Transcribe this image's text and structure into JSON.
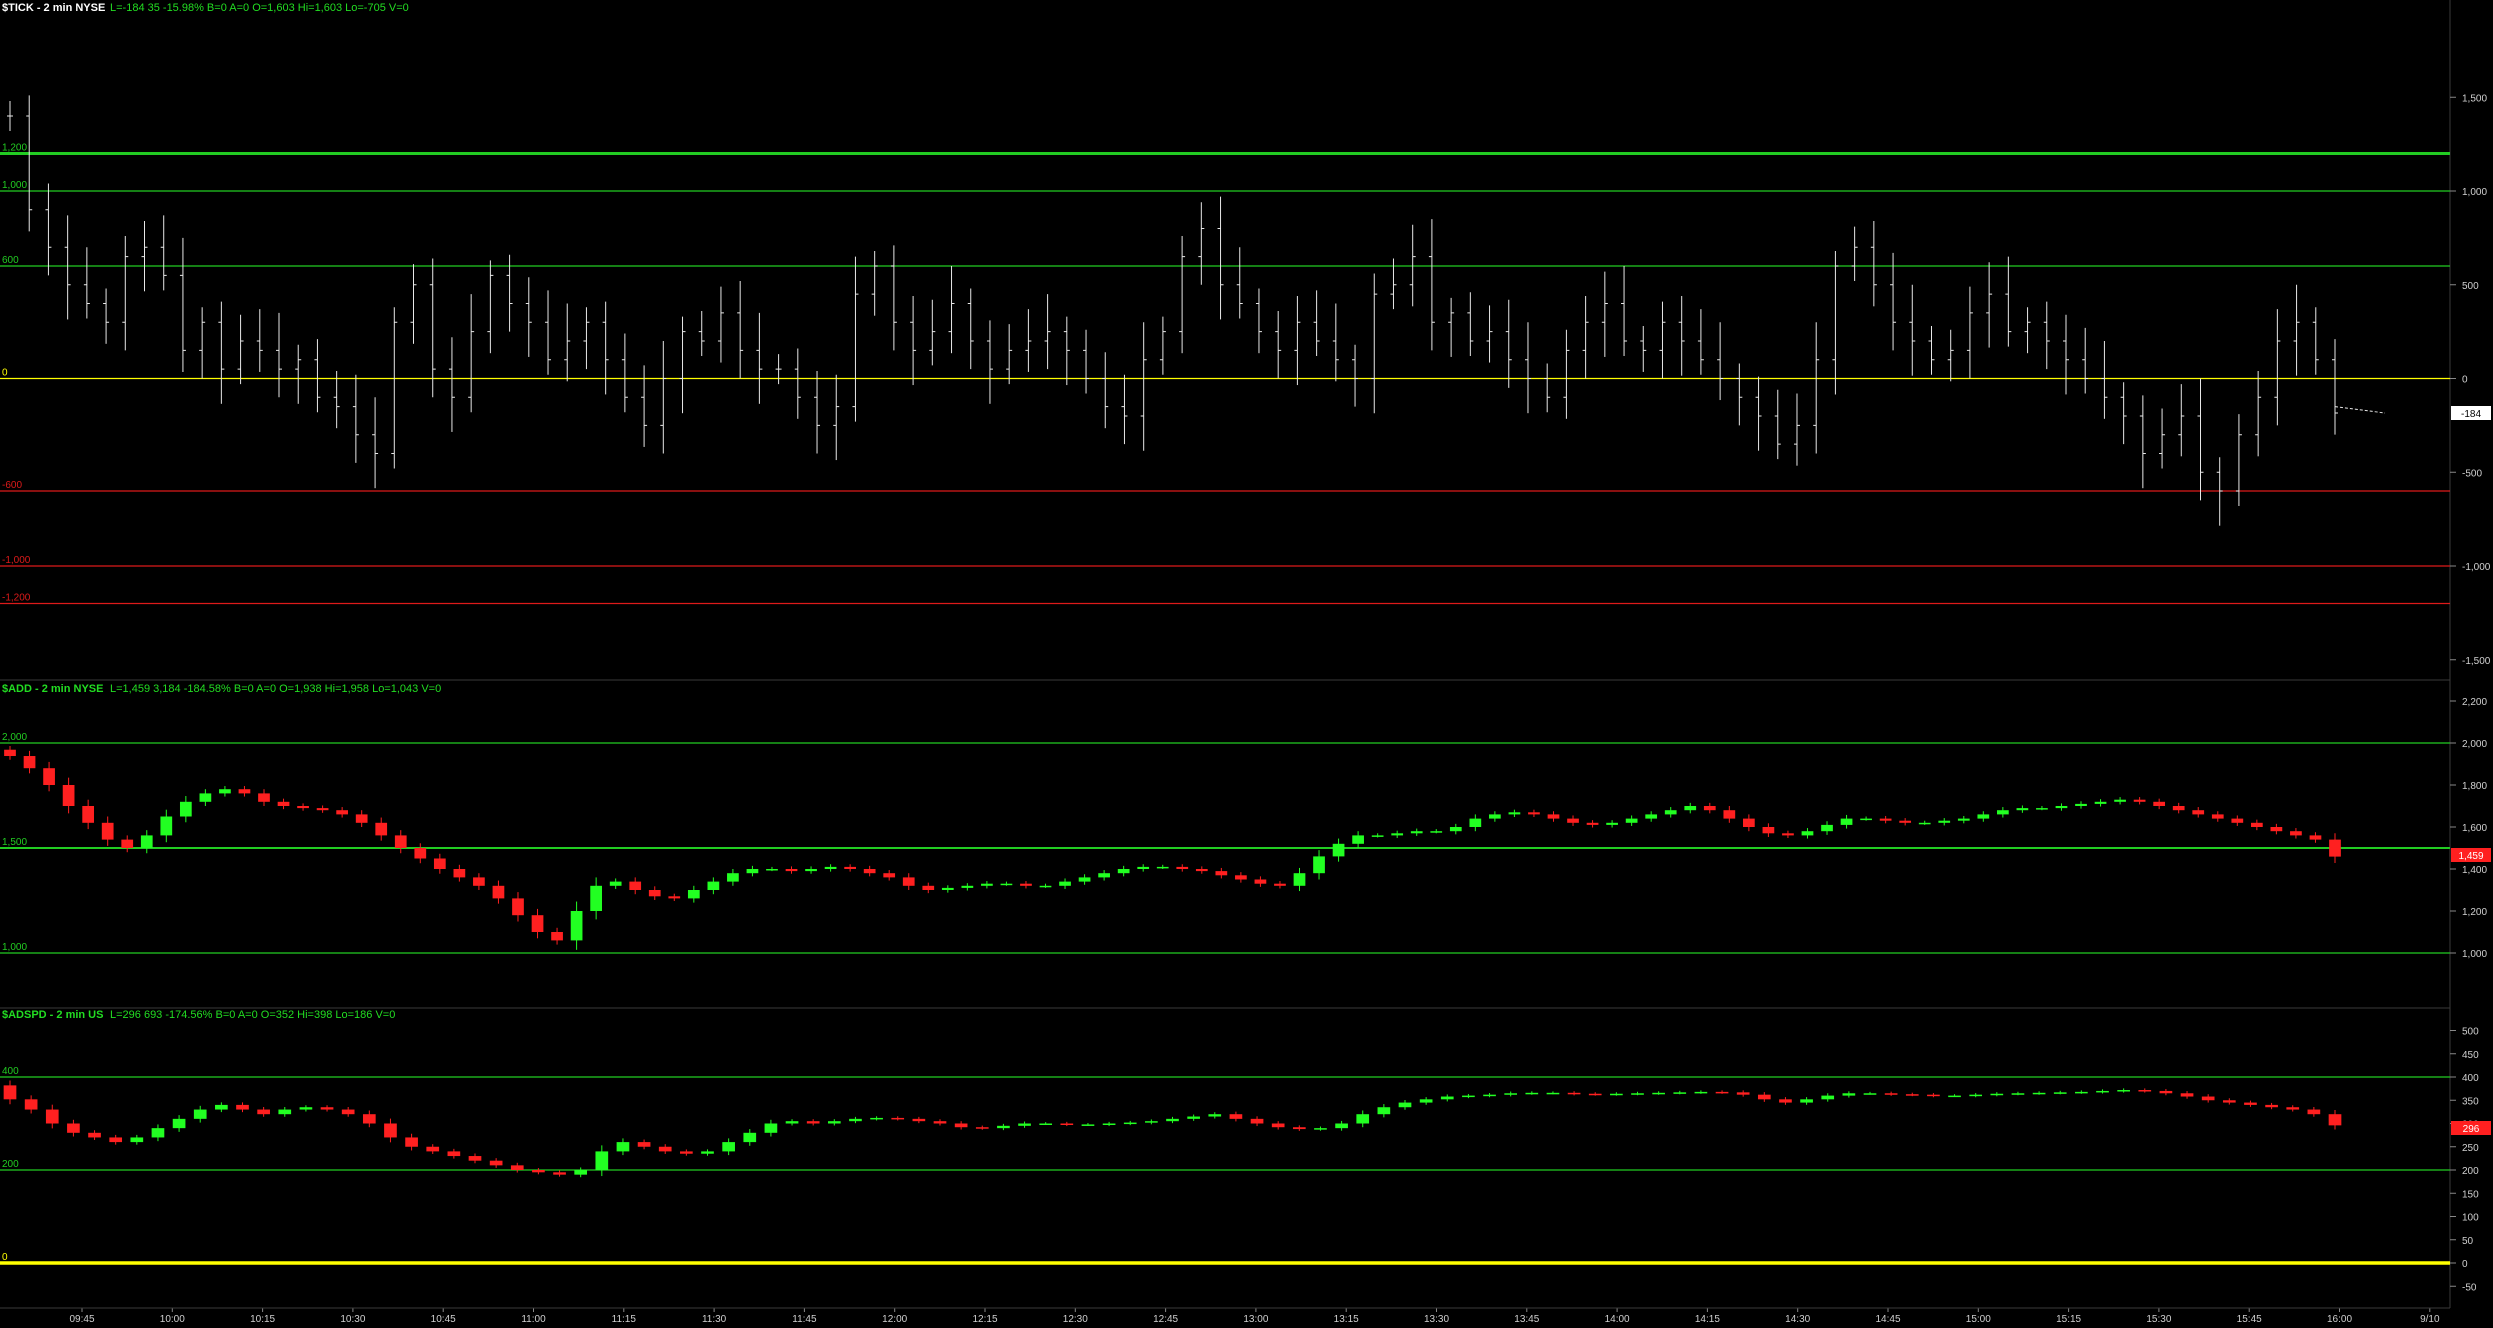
{
  "colors": {
    "background": "#000000",
    "header_label": "#ffffff",
    "header_values": "#22dd22",
    "bull": "#22ff22",
    "bear": "#ff2020",
    "zero_line": "#ffff00",
    "pos_level": "#22cc22",
    "neg_level": "#dd1a1a",
    "bar_ohlc": "#e8e8e8",
    "axis_text": "#d0d0d0",
    "separator": "#3a3a3a"
  },
  "panels": [
    {
      "header": {
        "label": "$TICK - 2 min  NYSE",
        "values": "L=-184  35  -15.98%  B=0  A=0  O=1,603  Hi=1,603  Lo=-705  V=0"
      },
      "last_value_label": "-184"
    },
    {
      "header": {
        "label": "$ADD - 2 min  NYSE",
        "values": "L=1,459  3,184  -184.58%  B=0  A=0  O=1,938  Hi=1,958  Lo=1,043  V=0"
      },
      "last_value_label": "1,459"
    },
    {
      "header": {
        "label": "$ADSPD - 2 min  US",
        "values": "L=296  693  -174.56%  B=0  A=0  O=352  Hi=398  Lo=186  V=0"
      },
      "last_value_label": "296"
    }
  ],
  "chart_data": [
    {
      "type": "ohlc",
      "series": "$TICK",
      "ylim": [
        -1500,
        1500
      ],
      "y_ticks": [
        "1,500",
        "1,000",
        "500",
        "0",
        "-500",
        "-1,000",
        "-1,500"
      ],
      "reference_lines": [
        {
          "value": 1200,
          "label": "1,200"
        },
        {
          "value": 1000,
          "label": "1,000"
        },
        {
          "value": 600,
          "label": "600"
        },
        {
          "value": 0,
          "label": "0"
        },
        {
          "value": -600,
          "label": "-600"
        },
        {
          "value": -1000,
          "label": "-1,000"
        },
        {
          "value": -1200,
          "label": "-1,200"
        }
      ],
      "last": -184,
      "sample_values": [
        1400,
        900,
        700,
        500,
        400,
        300,
        650,
        700,
        550,
        150,
        300,
        50,
        200,
        150,
        50,
        100,
        -100,
        -150,
        -300,
        -400,
        300,
        500,
        50,
        -100,
        250,
        550,
        400,
        300,
        100,
        200,
        300,
        100,
        -100,
        -250,
        0,
        250,
        200,
        350,
        150,
        50,
        50,
        -100,
        -250,
        -150,
        450,
        600,
        300,
        150,
        250,
        400,
        200,
        50,
        150,
        200,
        250,
        150,
        0,
        -150,
        -200,
        100,
        250,
        650,
        800,
        500,
        400,
        250,
        150,
        300,
        200,
        100,
        0,
        450,
        500,
        650,
        300,
        350,
        200,
        250,
        100,
        0,
        -100,
        150,
        300,
        400,
        200,
        150,
        300,
        200,
        100,
        0,
        -100,
        -200,
        -350,
        -250,
        100,
        600,
        700,
        500,
        300,
        200,
        100,
        150,
        350,
        450,
        250,
        300,
        200,
        100,
        0,
        -100,
        -200,
        -400,
        -300,
        -200,
        -500,
        -600,
        -300,
        -100,
        200,
        300,
        100,
        -184
      ],
      "x_ticks": [
        "09:45",
        "10:00",
        "10:15",
        "10:30",
        "10:45",
        "11:00",
        "11:15",
        "11:30",
        "11:45",
        "12:00",
        "12:15",
        "12:30",
        "12:45",
        "13:00",
        "13:15",
        "13:30",
        "13:45",
        "14:00",
        "14:15",
        "14:30",
        "14:45",
        "15:00",
        "15:15",
        "15:30",
        "15:45",
        "16:00",
        "9/10"
      ]
    },
    {
      "type": "candlestick",
      "series": "$ADD",
      "ylim": [
        900,
        2300
      ],
      "y_ticks": [
        "2,200",
        "2,000",
        "1,800",
        "1,600",
        "1,400",
        "1,200",
        "1,000"
      ],
      "reference_lines": [
        {
          "value": 2000,
          "label": "2,000"
        },
        {
          "value": 1500,
          "label": "1,500"
        },
        {
          "value": 1000,
          "label": "1,000"
        }
      ],
      "last": 1459,
      "path_values": [
        1938,
        1880,
        1800,
        1700,
        1620,
        1540,
        1500,
        1560,
        1650,
        1720,
        1760,
        1780,
        1760,
        1720,
        1700,
        1690,
        1680,
        1660,
        1620,
        1560,
        1500,
        1450,
        1400,
        1360,
        1320,
        1260,
        1180,
        1100,
        1060,
        1200,
        1320,
        1340,
        1300,
        1270,
        1260,
        1300,
        1340,
        1380,
        1400,
        1400,
        1390,
        1400,
        1410,
        1400,
        1380,
        1360,
        1320,
        1300,
        1310,
        1320,
        1330,
        1330,
        1320,
        1320,
        1340,
        1360,
        1380,
        1400,
        1410,
        1410,
        1400,
        1390,
        1370,
        1350,
        1330,
        1320,
        1380,
        1460,
        1520,
        1560,
        1560,
        1570,
        1580,
        1580,
        1600,
        1640,
        1660,
        1670,
        1660,
        1640,
        1620,
        1610,
        1620,
        1640,
        1660,
        1680,
        1700,
        1680,
        1640,
        1600,
        1570,
        1560,
        1580,
        1610,
        1640,
        1640,
        1630,
        1620,
        1620,
        1630,
        1640,
        1660,
        1680,
        1690,
        1690,
        1700,
        1710,
        1720,
        1730,
        1720,
        1700,
        1680,
        1660,
        1640,
        1620,
        1600,
        1580,
        1560,
        1540,
        1459
      ]
    },
    {
      "type": "candlestick",
      "series": "$ADSPD",
      "ylim": [
        -70,
        530
      ],
      "y_ticks": [
        "500",
        "450",
        "400",
        "350",
        "300",
        "250",
        "200",
        "150",
        "100",
        "50",
        "0",
        "-50"
      ],
      "reference_lines": [
        {
          "value": 400,
          "label": "400"
        },
        {
          "value": 200,
          "label": "200"
        },
        {
          "value": 0,
          "label": "0"
        }
      ],
      "last": 296,
      "path_values": [
        352,
        330,
        300,
        280,
        270,
        260,
        270,
        290,
        310,
        330,
        340,
        330,
        320,
        330,
        335,
        330,
        320,
        300,
        270,
        250,
        240,
        230,
        220,
        210,
        200,
        195,
        190,
        200,
        240,
        260,
        250,
        240,
        235,
        240,
        260,
        280,
        300,
        305,
        300,
        305,
        310,
        312,
        310,
        305,
        300,
        292,
        290,
        295,
        300,
        300,
        298,
        298,
        300,
        302,
        305,
        310,
        315,
        320,
        310,
        300,
        292,
        288,
        290,
        300,
        320,
        335,
        345,
        352,
        358,
        360,
        362,
        365,
        366,
        366,
        364,
        363,
        364,
        365,
        366,
        367,
        368,
        367,
        362,
        352,
        345,
        352,
        360,
        365,
        365,
        363,
        362,
        360,
        360,
        362,
        364,
        365,
        366,
        367,
        368,
        370,
        372,
        370,
        365,
        358,
        350,
        345,
        340,
        335,
        330,
        320,
        296
      ]
    }
  ]
}
